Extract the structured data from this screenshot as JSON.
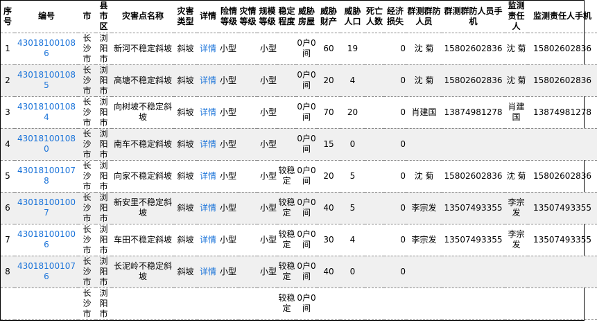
{
  "headers": [
    "序号",
    "编号",
    "市",
    "县市区",
    "灾害点名称",
    "灾害类型",
    "详情",
    "险情等级",
    "灾情等级",
    "规模等级",
    "稳定程度",
    "威胁房屋",
    "威胁财产",
    "威胁人口",
    "死亡人数",
    "经济损失",
    "群测群防人员",
    "群测群防人员手机",
    "监测责任人",
    "监测责任人手机"
  ],
  "link_color": "#1a73d9",
  "rows": [
    {
      "no": "1",
      "code": "430181001086",
      "city": "长沙市",
      "county": "浏阳市",
      "name": "新河不稳定斜坡",
      "type": "斜坡",
      "detail": "详情",
      "danger": "小型",
      "disaster": "",
      "scale": "小型",
      "stability": "",
      "house": "0户0间",
      "property": "60",
      "people": "19",
      "death": "",
      "loss": "0",
      "guard": "沈 菊",
      "guard_phone": "15802602836",
      "monitor": "沈 菊",
      "monitor_phone": "15802602836"
    },
    {
      "no": "2",
      "code": "430181001085",
      "city": "长沙市",
      "county": "浏阳市",
      "name": "高塘不稳定斜坡",
      "type": "斜坡",
      "detail": "详情",
      "danger": "小型",
      "disaster": "",
      "scale": "小型",
      "stability": "",
      "house": "0户0间",
      "property": "20",
      "people": "4",
      "death": "",
      "loss": "0",
      "guard": "沈 菊",
      "guard_phone": "15802602836",
      "monitor": "沈 菊",
      "monitor_phone": "15802602836"
    },
    {
      "no": "3",
      "code": "430181001084",
      "city": "长沙市",
      "county": "浏阳市",
      "name": "向树坡不稳定斜坡",
      "type": "斜坡",
      "detail": "详情",
      "danger": "小型",
      "disaster": "",
      "scale": "小型",
      "stability": "",
      "house": "0户0间",
      "property": "70",
      "people": "20",
      "death": "",
      "loss": "0",
      "guard": "肖建国",
      "guard_phone": "13874981278",
      "monitor": "肖建国",
      "monitor_phone": "13874981278"
    },
    {
      "no": "4",
      "code": "430181001080",
      "city": "长沙市",
      "county": "浏阳市",
      "name": "南车不稳定斜坡",
      "type": "斜坡",
      "detail": "详情",
      "danger": "小型",
      "disaster": "",
      "scale": "小型",
      "stability": "",
      "house": "0户0间",
      "property": "15",
      "people": "0",
      "death": "",
      "loss": "0",
      "guard": "",
      "guard_phone": "",
      "monitor": "",
      "monitor_phone": ""
    },
    {
      "no": "5",
      "code": "430181001078",
      "city": "长沙市",
      "county": "浏阳市",
      "name": "向家不稳定斜坡",
      "type": "斜坡",
      "detail": "详情",
      "danger": "小型",
      "disaster": "",
      "scale": "小型",
      "stability": "较稳定",
      "house": "0户0间",
      "property": "20",
      "people": "5",
      "death": "",
      "loss": "0",
      "guard": "沈 菊",
      "guard_phone": "15802602836",
      "monitor": "沈 菊",
      "monitor_phone": "15802602836"
    },
    {
      "no": "6",
      "code": "430181001007",
      "city": "长沙市",
      "county": "浏阳市",
      "name": "新安里不稳定斜坡",
      "type": "斜坡",
      "detail": "详情",
      "danger": "小型",
      "disaster": "",
      "scale": "小型",
      "stability": "较稳定",
      "house": "0户0间",
      "property": "40",
      "people": "5",
      "death": "",
      "loss": "0",
      "guard": "李宗发",
      "guard_phone": "13507493355",
      "monitor": "李宗发",
      "monitor_phone": "13507493355"
    },
    {
      "no": "7",
      "code": "430181001006",
      "city": "长沙市",
      "county": "浏阳市",
      "name": "车田不稳定斜坡",
      "type": "斜坡",
      "detail": "详情",
      "danger": "小型",
      "disaster": "",
      "scale": "小型",
      "stability": "较稳定",
      "house": "0户0间",
      "property": "30",
      "people": "4",
      "death": "",
      "loss": "0",
      "guard": "李宗发",
      "guard_phone": "13507493355",
      "monitor": "李宗发",
      "monitor_phone": "13507493355"
    },
    {
      "no": "8",
      "code": "430181001076",
      "city": "长沙市",
      "county": "浏阳市",
      "name": "长泥岭不稳定斜坡",
      "type": "斜坡",
      "detail": "详情",
      "danger": "小型",
      "disaster": "",
      "scale": "小型",
      "stability": "较稳定",
      "house": "0户0间",
      "property": "40",
      "people": "0",
      "death": "",
      "loss": "0",
      "guard": "",
      "guard_phone": "",
      "monitor": "",
      "monitor_phone": ""
    },
    {
      "no": "",
      "code": "",
      "city": "长沙市",
      "county": "浏阳市",
      "name": "",
      "type": "",
      "detail": "",
      "danger": "",
      "disaster": "",
      "scale": "",
      "stability": "较稳定",
      "house": "0户0间",
      "property": "",
      "people": "",
      "death": "",
      "loss": "",
      "guard": "",
      "guard_phone": "",
      "monitor": "",
      "monitor_phone": ""
    }
  ]
}
